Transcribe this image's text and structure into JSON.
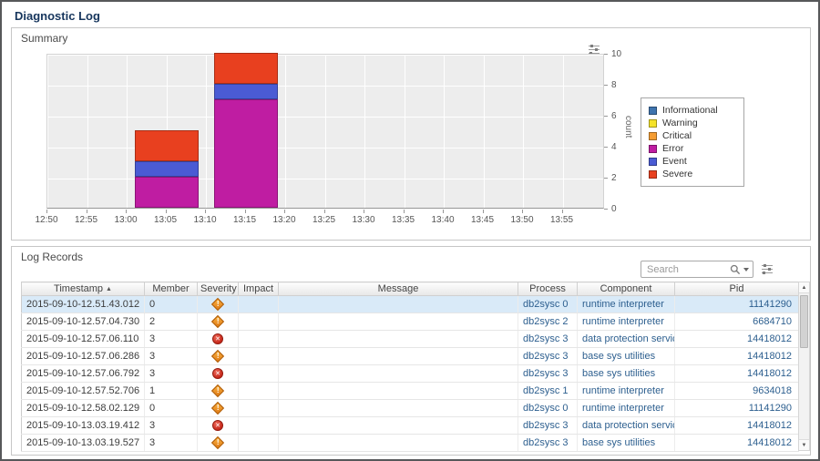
{
  "page": {
    "title": "Diagnostic Log"
  },
  "summary": {
    "title": "Summary"
  },
  "icons": {
    "warning": "!",
    "error": "✕"
  },
  "chart_data": {
    "type": "bar",
    "stacked": true,
    "title": "",
    "xlabel": "",
    "ylabel": "count",
    "ylim": [
      0,
      10
    ],
    "y_ticks": [
      0,
      2,
      4,
      6,
      8,
      10
    ],
    "x_ticks": [
      "12:50",
      "12:55",
      "13:00",
      "13:05",
      "13:10",
      "13:15",
      "13:20",
      "13:25",
      "13:30",
      "13:35",
      "13:40",
      "13:45",
      "13:50",
      "13:55"
    ],
    "legend_position": "right",
    "grid": true,
    "series": [
      {
        "name": "Informational",
        "color": "#3f74ae",
        "values_by_time": {}
      },
      {
        "name": "Warning",
        "color": "#f5e329",
        "values_by_time": {}
      },
      {
        "name": "Critical",
        "color": "#f59d33",
        "values_by_time": {}
      },
      {
        "name": "Error",
        "color": "#bf1da2",
        "values_by_time": {
          "13:05": 2,
          "13:15": 7
        }
      },
      {
        "name": "Event",
        "color": "#4a5bd4",
        "values_by_time": {
          "13:05": 1,
          "13:15": 1
        }
      },
      {
        "name": "Severe",
        "color": "#e8401f",
        "values_by_time": {
          "13:05": 2,
          "13:15": 2
        }
      }
    ]
  },
  "log_records": {
    "title": "Log Records",
    "search_placeholder": "Search",
    "columns": [
      {
        "label": "Timestamp",
        "sort": "asc"
      },
      {
        "label": "Member"
      },
      {
        "label": "Severity"
      },
      {
        "label": "Impact"
      },
      {
        "label": "Message"
      },
      {
        "label": "Process"
      },
      {
        "label": "Component"
      },
      {
        "label": "Pid"
      }
    ],
    "rows": [
      {
        "timestamp": "2015-09-10-12.51.43.012",
        "member": "0",
        "severity": "warning",
        "impact": "",
        "message": "",
        "process": "db2sysc 0",
        "component": "runtime interpreter",
        "pid": "11141290",
        "selected": true
      },
      {
        "timestamp": "2015-09-10-12.57.04.730",
        "member": "2",
        "severity": "warning",
        "impact": "",
        "message": "",
        "process": "db2sysc 2",
        "component": "runtime interpreter",
        "pid": "6684710"
      },
      {
        "timestamp": "2015-09-10-12.57.06.110",
        "member": "3",
        "severity": "error",
        "impact": "",
        "message": "",
        "process": "db2sysc 3",
        "component": "data protection services",
        "pid": "14418012"
      },
      {
        "timestamp": "2015-09-10-12.57.06.286",
        "member": "3",
        "severity": "warning",
        "impact": "",
        "message": "",
        "process": "db2sysc 3",
        "component": "base sys utilities",
        "pid": "14418012"
      },
      {
        "timestamp": "2015-09-10-12.57.06.792",
        "member": "3",
        "severity": "error",
        "impact": "",
        "message": "",
        "process": "db2sysc 3",
        "component": "base sys utilities",
        "pid": "14418012"
      },
      {
        "timestamp": "2015-09-10-12.57.52.706",
        "member": "1",
        "severity": "warning",
        "impact": "",
        "message": "",
        "process": "db2sysc 1",
        "component": "runtime interpreter",
        "pid": "9634018"
      },
      {
        "timestamp": "2015-09-10-12.58.02.129",
        "member": "0",
        "severity": "warning",
        "impact": "",
        "message": "",
        "process": "db2sysc 0",
        "component": "runtime interpreter",
        "pid": "11141290"
      },
      {
        "timestamp": "2015-09-10-13.03.19.412",
        "member": "3",
        "severity": "error",
        "impact": "",
        "message": "",
        "process": "db2sysc 3",
        "component": "data protection services",
        "pid": "14418012"
      },
      {
        "timestamp": "2015-09-10-13.03.19.527",
        "member": "3",
        "severity": "warning",
        "impact": "",
        "message": "",
        "process": "db2sysc 3",
        "component": "base sys utilities",
        "pid": "14418012"
      }
    ]
  }
}
